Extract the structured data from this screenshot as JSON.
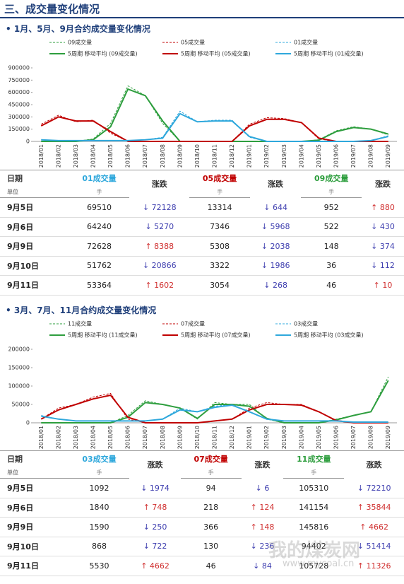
{
  "page_title": "三、成交量变化情况",
  "subtitles": [
    "• 1月、5月、9月合约成交量变化情况",
    "• 3月、7月、11月合约成交量变化情况"
  ],
  "watermark": "我的煤炭网",
  "watermark_url": "www.mycoal.cn",
  "chart_data": [
    {
      "type": "line",
      "categories": [
        "2018/01",
        "2018/02",
        "2018/03",
        "2018/04",
        "2018/05",
        "2018/06",
        "2018/07",
        "2018/08",
        "2018/09",
        "2018/10",
        "2018/11",
        "2018/12",
        "2019/01",
        "2019/02",
        "2019/03",
        "2019/04",
        "2019/05",
        "2019/06",
        "2019/07",
        "2019/08",
        "2019/09"
      ],
      "ylim": [
        0,
        900000
      ],
      "yticks": [
        0,
        150000,
        300000,
        450000,
        600000,
        750000,
        900000
      ],
      "series": [
        {
          "name": "09成交量",
          "color": "#2e9e3e",
          "dashed": true,
          "values": [
            0,
            0,
            0,
            30000,
            220000,
            680000,
            560000,
            220000,
            0,
            0,
            0,
            0,
            0,
            0,
            0,
            0,
            20000,
            130000,
            180000,
            150000,
            80000
          ]
        },
        {
          "name": "05成交量",
          "color": "#c00000",
          "dashed": true,
          "values": [
            210000,
            320000,
            240000,
            260000,
            100000,
            0,
            0,
            0,
            0,
            0,
            0,
            0,
            210000,
            290000,
            280000,
            230000,
            30000,
            0,
            0,
            0,
            0
          ]
        },
        {
          "name": "01成交量",
          "color": "#2fa8dc",
          "dashed": true,
          "values": [
            20000,
            10000,
            10000,
            10000,
            10000,
            10000,
            20000,
            50000,
            370000,
            240000,
            260000,
            260000,
            50000,
            0,
            0,
            0,
            0,
            0,
            0,
            10000,
            70000
          ]
        },
        {
          "name": "5周期 移动平均 (09成交量)",
          "color": "#2e9e3e",
          "dashed": false,
          "values": [
            0,
            0,
            0,
            20000,
            180000,
            640000,
            560000,
            250000,
            0,
            0,
            0,
            0,
            0,
            0,
            0,
            0,
            15000,
            120000,
            170000,
            150000,
            90000
          ]
        },
        {
          "name": "5周期 移动平均 (05成交量)",
          "color": "#c00000",
          "dashed": false,
          "values": [
            190000,
            300000,
            250000,
            250000,
            120000,
            0,
            0,
            0,
            0,
            0,
            0,
            0,
            190000,
            270000,
            270000,
            230000,
            40000,
            0,
            0,
            0,
            0
          ]
        },
        {
          "name": "5周期 移动平均 (01成交量)",
          "color": "#2fa8dc",
          "dashed": false,
          "values": [
            20000,
            10000,
            10000,
            10000,
            10000,
            10000,
            20000,
            40000,
            340000,
            240000,
            250000,
            250000,
            60000,
            0,
            0,
            0,
            0,
            0,
            0,
            10000,
            60000
          ]
        }
      ]
    },
    {
      "type": "line",
      "categories": [
        "2018/01",
        "2018/02",
        "2018/03",
        "2018/04",
        "2018/05",
        "2018/06",
        "2018/07",
        "2018/08",
        "2018/09",
        "2018/10",
        "2018/11",
        "2018/12",
        "2019/01",
        "2019/02",
        "2019/03",
        "2019/04",
        "2019/05",
        "2019/06",
        "2019/07",
        "2019/08",
        "2019/09"
      ],
      "ylim": [
        0,
        200000
      ],
      "yticks": [
        0,
        50000,
        100000,
        150000,
        200000
      ],
      "series": [
        {
          "name": "11成交量",
          "color": "#2e9e3e",
          "dashed": true,
          "values": [
            0,
            0,
            0,
            0,
            0,
            20000,
            60000,
            50000,
            40000,
            10000,
            55000,
            50000,
            50000,
            10000,
            0,
            0,
            0,
            10000,
            20000,
            30000,
            125000
          ]
        },
        {
          "name": "07成交量",
          "color": "#c00000",
          "dashed": true,
          "values": [
            10000,
            40000,
            50000,
            70000,
            80000,
            10000,
            0,
            0,
            0,
            0,
            5000,
            10000,
            40000,
            55000,
            50000,
            50000,
            30000,
            5000,
            0,
            0,
            0
          ]
        },
        {
          "name": "03成交量",
          "color": "#2fa8dc",
          "dashed": true,
          "values": [
            20000,
            10000,
            5000,
            5000,
            5000,
            5000,
            5000,
            10000,
            40000,
            30000,
            45000,
            50000,
            30000,
            10000,
            5000,
            5000,
            5000,
            5000,
            2000,
            2000,
            2000
          ]
        },
        {
          "name": "5周期 移动平均 (11成交量)",
          "color": "#2e9e3e",
          "dashed": false,
          "values": [
            0,
            0,
            0,
            0,
            0,
            15000,
            55000,
            50000,
            40000,
            12000,
            50000,
            50000,
            45000,
            12000,
            0,
            0,
            0,
            8000,
            20000,
            30000,
            115000
          ]
        },
        {
          "name": "5周期 移动平均 (07成交量)",
          "color": "#c00000",
          "dashed": false,
          "values": [
            10000,
            35000,
            50000,
            65000,
            75000,
            15000,
            0,
            0,
            0,
            0,
            5000,
            10000,
            35000,
            50000,
            50000,
            48000,
            30000,
            6000,
            0,
            0,
            0
          ]
        },
        {
          "name": "5周期 移动平均 (03成交量)",
          "color": "#2fa8dc",
          "dashed": false,
          "values": [
            18000,
            10000,
            5000,
            5000,
            5000,
            5000,
            5000,
            10000,
            35000,
            30000,
            42000,
            48000,
            30000,
            10000,
            5000,
            5000,
            5000,
            5000,
            2000,
            2000,
            2000
          ]
        }
      ]
    }
  ],
  "tables": [
    {
      "headers": [
        "日期",
        "01成交量",
        "涨跌",
        "05成交量",
        "涨跌",
        "09成交量",
        "涨跌"
      ],
      "units": [
        "单位",
        "手",
        "手",
        "手"
      ],
      "rows": [
        [
          "9月5日",
          "69510",
          "↓ 72128",
          "13314",
          "↓ 644",
          "952",
          "↑ 880"
        ],
        [
          "9月6日",
          "64240",
          "↓ 5270",
          "7346",
          "↓ 5968",
          "522",
          "↓ 430"
        ],
        [
          "9月9日",
          "72628",
          "↑ 8388",
          "5308",
          "↓ 2038",
          "148",
          "↓ 374"
        ],
        [
          "9月10日",
          "51762",
          "↓ 20866",
          "3322",
          "↓ 1986",
          "36",
          "↓ 112"
        ],
        [
          "9月11日",
          "53364",
          "↑ 1602",
          "3054",
          "↓ 268",
          "46",
          "↑ 10"
        ]
      ]
    },
    {
      "headers": [
        "日期",
        "03成交量",
        "涨跌",
        "07成交量",
        "涨跌",
        "11成交量",
        "涨跌"
      ],
      "units": [
        "单位",
        "手",
        "手",
        "手"
      ],
      "rows": [
        [
          "9月5日",
          "1092",
          "↓ 1974",
          "94",
          "↓ 6",
          "105310",
          "↓ 72210"
        ],
        [
          "9月6日",
          "1840",
          "↑ 748",
          "218",
          "↑ 124",
          "141154",
          "↑ 35844"
        ],
        [
          "9月9日",
          "1590",
          "↓ 250",
          "366",
          "↑ 148",
          "145816",
          "↑ 4662"
        ],
        [
          "9月10日",
          "868",
          "↓ 722",
          "130",
          "↓ 236",
          "94402",
          "↓ 51414"
        ],
        [
          "9月11日",
          "5530",
          "↑ 4662",
          "46",
          "↓ 84",
          "105728",
          "↑ 11326"
        ]
      ]
    }
  ]
}
